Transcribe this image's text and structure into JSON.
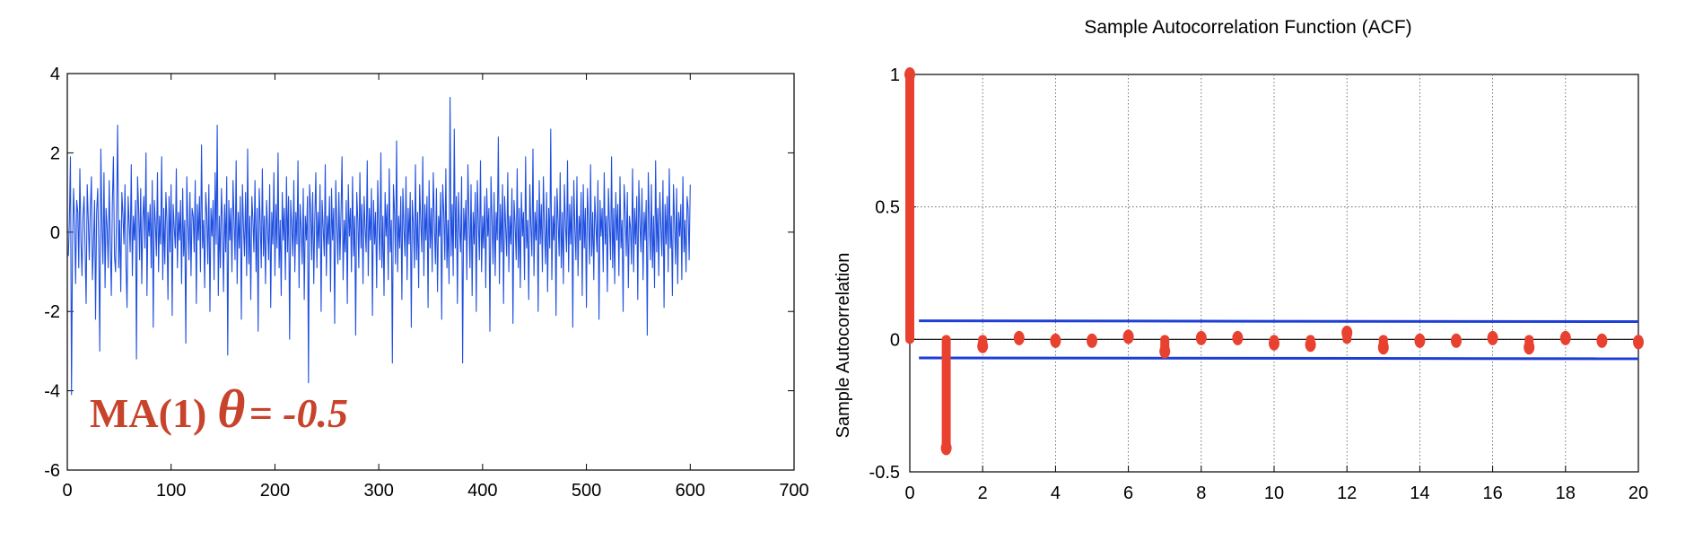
{
  "colors": {
    "series": "#1f4fe0",
    "stem": "#e8412f",
    "bound": "#1d3fd6",
    "annotation": "#c8432b"
  },
  "chart_data": [
    {
      "type": "line",
      "xlim": [
        0,
        700
      ],
      "ylim": [
        -6,
        4
      ],
      "xticks": [
        "0",
        "100",
        "200",
        "300",
        "400",
        "500",
        "600",
        "700"
      ],
      "yticks": [
        "4",
        "2",
        "0",
        "-2",
        "-4",
        "-6"
      ],
      "annotation": {
        "model": "MA(1)",
        "theta": "θ",
        "equation": "= -0.5"
      },
      "series": [
        {
          "x_range": [
            1,
            600
          ],
          "values": [
            -0.6,
            0.3,
            1.9,
            -4.1,
            -0.4,
            1.1,
            0.2,
            -1.3,
            0.8,
            0.5,
            -0.9,
            1.6,
            -0.2,
            -1.1,
            0.4,
            0.9,
            -0.5,
            -1.8,
            1.2,
            0.3,
            -0.7,
            0.6,
            1.4,
            -1.2,
            -0.3,
            0.8,
            -2.2,
            0.5,
            1.1,
            -0.4,
            -3.0,
            2.1,
            0.2,
            -0.8,
            1.5,
            -1.4,
            0.6,
            0.1,
            -0.9,
            1.3,
            -0.2,
            -1.6,
            0.7,
            1.9,
            -0.6,
            -1.0,
            0.4,
            2.7,
            -0.9,
            0.3,
            -1.5,
            1.0,
            0.5,
            -0.3,
            1.2,
            -0.8,
            -1.9,
            0.9,
            0.2,
            -0.5,
            1.7,
            -1.1,
            0.4,
            -0.2,
            0.8,
            -3.2,
            1.4,
            0.6,
            -0.7,
            1.1,
            -1.3,
            0.3,
            0.9,
            -0.4,
            2.0,
            -1.6,
            0.5,
            -0.1,
            0.7,
            -0.9,
            1.3,
            -2.4,
            0.8,
            0.2,
            -0.6,
            1.5,
            -1.0,
            0.4,
            -0.3,
            1.9,
            -1.2,
            0.6,
            -0.8,
            1.0,
            0.3,
            -1.7,
            0.9,
            -0.5,
            1.2,
            -2.1,
            0.7,
            0.1,
            -0.4,
            1.6,
            -0.9,
            0.5,
            -0.2,
            0.8,
            -1.3,
            1.1,
            -0.6,
            0.3,
            -2.8,
            1.4,
            0.2,
            -0.7,
            1.0,
            -1.1,
            0.6,
            0.4,
            -0.5,
            1.3,
            -1.8,
            0.7,
            -0.2,
            0.9,
            -1.0,
            2.2,
            -0.4,
            0.3,
            -1.4,
            1.0,
            0.5,
            -0.8,
            1.2,
            -2.0,
            0.6,
            -0.1,
            0.8,
            -1.2,
            1.5,
            -0.3,
            2.7,
            -1.6,
            0.4,
            -0.9,
            1.1,
            0.2,
            -1.5,
            0.7,
            -0.5,
            1.4,
            -3.1,
            0.8,
            -0.2,
            0.6,
            -1.0,
            1.3,
            0.3,
            -0.7,
            1.8,
            -1.3,
            0.5,
            -0.4,
            0.9,
            -2.2,
            1.2,
            0.1,
            -0.6,
            1.0,
            -1.1,
            2.1,
            -0.8,
            0.4,
            -1.7,
            0.9,
            0.3,
            -0.5,
            1.3,
            -1.0,
            0.6,
            -2.5,
            1.1,
            0.2,
            -0.9,
            1.6,
            -0.6,
            0.4,
            -1.3,
            0.8,
            0.1,
            -0.7,
            1.2,
            -1.9,
            0.5,
            -0.3,
            1.5,
            -1.1,
            0.7,
            -0.4,
            2.0,
            -0.9,
            0.3,
            -1.6,
            1.0,
            -0.2,
            0.6,
            -1.2,
            1.4,
            -0.5,
            0.9,
            -2.7,
            0.8,
            0.2,
            -0.6,
            1.3,
            -1.0,
            0.5,
            -0.3,
            1.8,
            -1.4,
            0.7,
            0.1,
            -0.8,
            1.1,
            -1.7,
            0.4,
            -0.2,
            0.9,
            -3.8,
            1.2,
            0.6,
            -0.7,
            1.0,
            -1.3,
            0.3,
            1.5,
            -0.9,
            0.5,
            -0.4,
            1.2,
            -2.0,
            0.8,
            0.1,
            -0.6,
            1.7,
            -1.1,
            0.4,
            -0.3,
            0.9,
            -1.5,
            1.1,
            -0.2,
            0.6,
            -2.3,
            1.3,
            0.2,
            -0.8,
            1.0,
            -0.7,
            0.5,
            1.9,
            -1.2,
            0.3,
            -0.5,
            0.8,
            -1.8,
            1.2,
            -0.1,
            0.6,
            -1.0,
            1.4,
            -0.6,
            0.4,
            -2.6,
            1.0,
            0.3,
            -0.9,
            1.5,
            -0.4,
            0.7,
            -1.3,
            0.9,
            0.1,
            -0.5,
            1.8,
            -1.1,
            0.6,
            -0.2,
            1.1,
            -2.1,
            0.8,
            -0.3,
            0.5,
            -1.4,
            1.3,
            0.2,
            -0.7,
            2.0,
            -0.9,
            0.4,
            -1.6,
            1.0,
            -0.1,
            0.7,
            -1.2,
            1.6,
            -0.5,
            0.3,
            -3.3,
            1.2,
            0.5,
            -0.8,
            2.3,
            -1.0,
            0.4,
            -0.4,
            0.9,
            -1.7,
            1.1,
            0.1,
            -0.6,
            1.4,
            -1.2,
            0.6,
            -0.3,
            1.0,
            -2.4,
            0.8,
            0.2,
            -0.9,
            1.7,
            -0.7,
            0.5,
            -1.4,
            1.2,
            0.3,
            -0.5,
            1.9,
            -1.1,
            0.7,
            -0.2,
            0.9,
            -1.9,
            1.3,
            -0.4,
            0.6,
            -1.0,
            1.5,
            0.2,
            -0.8,
            1.1,
            -1.5,
            0.4,
            -0.1,
            1.0,
            -2.2,
            1.2,
            0.5,
            -0.7,
            1.6,
            -0.9,
            0.3,
            -1.3,
            3.4,
            -0.6,
            0.7,
            -1.1,
            2.6,
            -0.4,
            0.9,
            -1.8,
            1.0,
            0.1,
            -0.5,
            1.4,
            -3.3,
            0.6,
            -0.2,
            0.8,
            -1.2,
            1.7,
            0.3,
            -0.9,
            1.2,
            -1.6,
            0.5,
            -0.3,
            1.0,
            -2.0,
            1.3,
            0.2,
            -0.7,
            1.8,
            -1.0,
            0.4,
            -0.4,
            0.9,
            -1.4,
            1.1,
            -0.1,
            0.6,
            -2.5,
            1.4,
            0.3,
            -0.8,
            1.0,
            -1.1,
            0.5,
            -0.2,
            2.4,
            -1.3,
            0.7,
            -0.5,
            1.2,
            -1.8,
            0.9,
            0.1,
            -0.6,
            1.5,
            -1.0,
            0.4,
            -0.3,
            1.1,
            -2.3,
            0.8,
            0.2,
            -0.7,
            1.6,
            -0.9,
            0.6,
            -1.4,
            1.0,
            -0.1,
            0.5,
            -1.2,
            1.9,
            -0.4,
            0.3,
            -1.7,
            1.2,
            0.2,
            -0.6,
            2.1,
            -1.1,
            0.5,
            -0.2,
            0.8,
            -2.0,
            1.3,
            -0.3,
            0.7,
            -1.0,
            1.4,
            0.1,
            -0.8,
            1.0,
            -1.5,
            0.6,
            -0.4,
            2.6,
            -1.2,
            0.4,
            -0.2,
            0.9,
            -2.1,
            1.1,
            0.3,
            -0.6,
            1.5,
            -0.9,
            0.5,
            -1.3,
            1.2,
            0.2,
            -0.5,
            1.8,
            -1.0,
            0.7,
            -0.3,
            0.9,
            -2.4,
            1.3,
            0.1,
            -0.7,
            1.4,
            -1.1,
            0.4,
            -0.2,
            1.0,
            -1.6,
            1.2,
            -0.4,
            0.6,
            -1.9,
            1.1,
            0.3,
            -0.8,
            1.7,
            -0.6,
            0.5,
            -1.2,
            0.9,
            0.2,
            -0.5,
            1.3,
            -2.2,
            0.8,
            -0.1,
            0.6,
            -1.0,
            1.5,
            -0.3,
            0.4,
            -1.5,
            1.1,
            0.2,
            -0.7,
            1.9,
            -0.9,
            0.6,
            -1.3,
            1.0,
            -0.2,
            0.7,
            -1.1,
            1.4,
            -0.4,
            0.3,
            -2.0,
            1.2,
            0.5,
            -0.6,
            1.0,
            -1.4,
            0.4,
            0.1,
            -0.8,
            1.6,
            -1.0,
            0.6,
            -0.3,
            0.9,
            -1.7,
            1.3,
            0.2,
            -0.5,
            1.1,
            -1.2,
            0.5,
            -0.2,
            0.8,
            -2.6,
            1.5,
            0.3,
            -0.7,
            1.2,
            -0.9,
            0.4,
            -1.4,
            1.8,
            -0.5,
            0.6,
            -1.1,
            1.0,
            0.1,
            -0.6,
            1.3,
            -1.9,
            0.7,
            -0.3,
            0.9,
            -1.0,
            1.6,
            -0.4,
            0.4,
            -1.6,
            1.2,
            0.2,
            -0.8,
            1.1,
            -1.3,
            0.5,
            -0.1,
            0.7,
            -1.2,
            1.4,
            -0.5,
            0.3,
            -1.0,
            0.9,
            0.6,
            -0.7,
            1.2
          ]
        }
      ]
    },
    {
      "type": "stem",
      "title": "Sample Autocorrelation Function (ACF)",
      "xlabel": "",
      "ylabel": "Sample Autocorrelation",
      "xlim": [
        0,
        20
      ],
      "ylim": [
        -0.5,
        1
      ],
      "grid": true,
      "xticks": [
        "0",
        "2",
        "4",
        "6",
        "8",
        "10",
        "12",
        "14",
        "16",
        "18",
        "20"
      ],
      "yticks": [
        "1",
        "0.5",
        "0",
        "-0.5"
      ],
      "lags": [
        0,
        1,
        2,
        3,
        4,
        5,
        6,
        7,
        8,
        9,
        10,
        11,
        12,
        13,
        14,
        15,
        16,
        17,
        18,
        19,
        20
      ],
      "values": [
        1.0,
        -0.41,
        -0.025,
        0.005,
        -0.005,
        -0.005,
        0.01,
        -0.045,
        0.005,
        0.005,
        -0.015,
        -0.02,
        0.025,
        -0.03,
        -0.005,
        -0.005,
        0.005,
        -0.03,
        0.005,
        -0.005,
        -0.01
      ],
      "bounds": {
        "upper": [
          0.07,
          0.067
        ],
        "lower": [
          -0.07,
          -0.073
        ]
      }
    }
  ]
}
